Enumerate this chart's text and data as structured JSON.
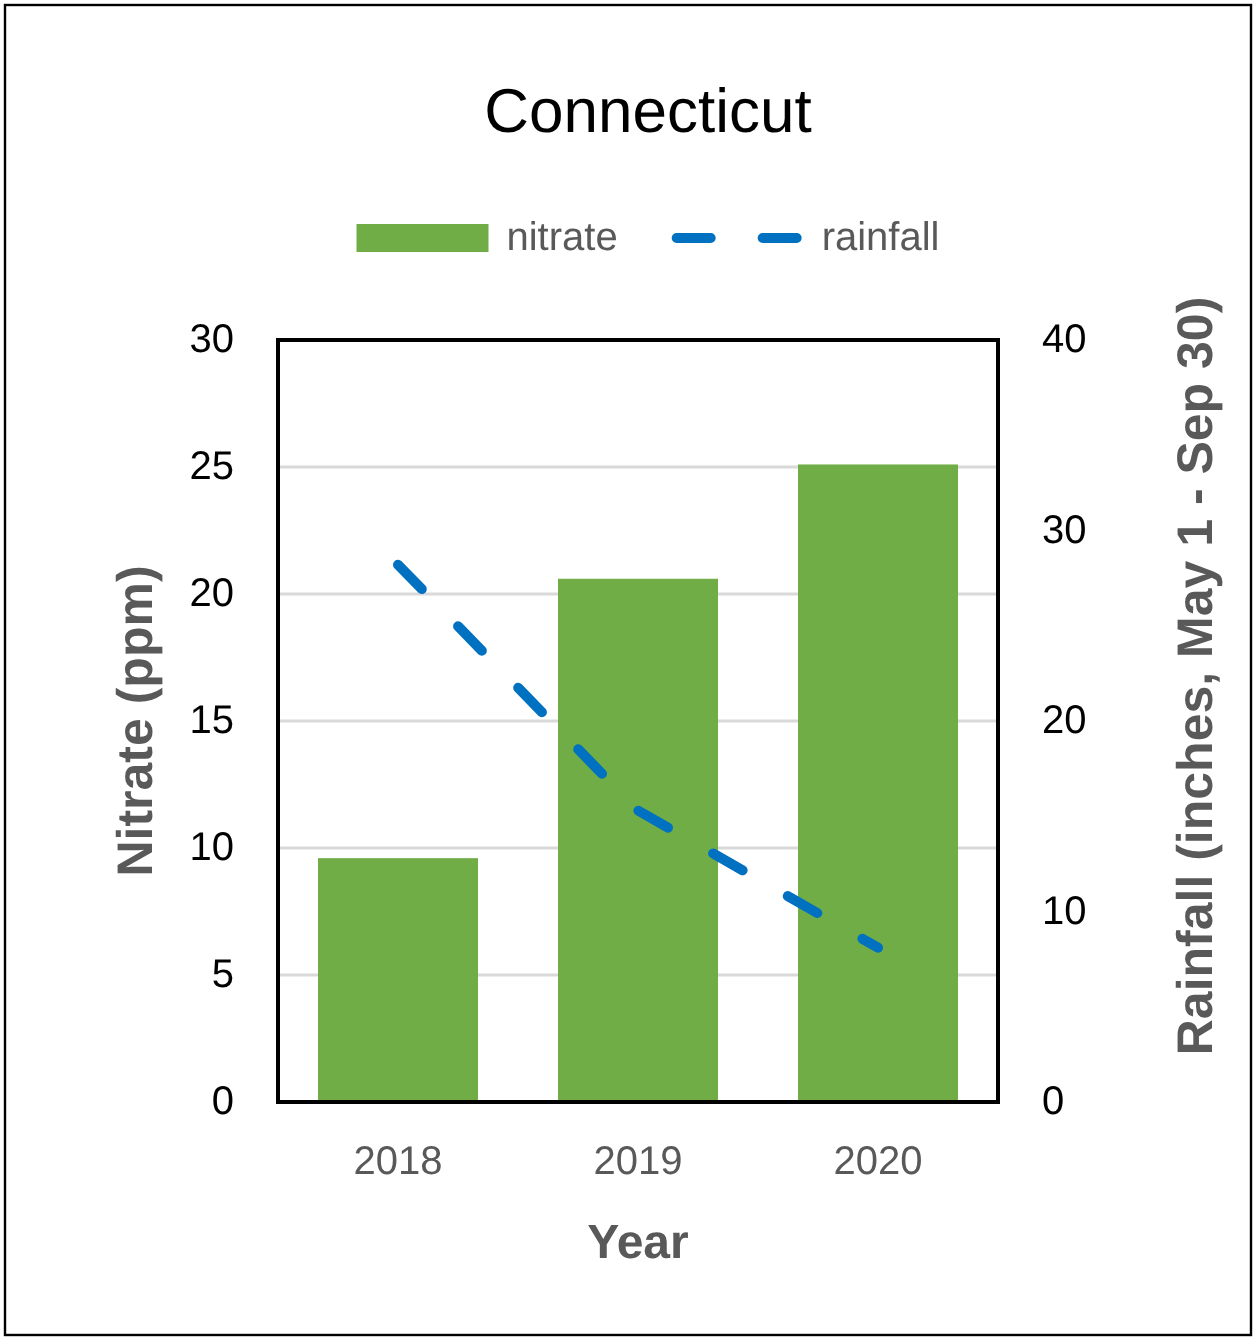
{
  "chart_data": {
    "type": "bar",
    "title": "Connecticut",
    "xlabel": "Year",
    "ylabel": "Nitrate (ppm)",
    "y2label": "Rainfall (inches, May 1 - Sep 30)",
    "categories": [
      "2018",
      "2019",
      "2020"
    ],
    "series": [
      {
        "name": "nitrate",
        "color": "#70ad47",
        "values": [
          9.6,
          20.6,
          25.1
        ]
      },
      {
        "name": "rainfall",
        "type": "line",
        "axis": "y2",
        "color": "#0070c0",
        "line_style": "dashed",
        "values": [
          28.2,
          15.3,
          8.1
        ]
      }
    ],
    "ylim": [
      0,
      30
    ],
    "yticks": [
      0,
      5,
      10,
      15,
      20,
      25,
      30
    ],
    "y2lim": [
      0,
      40
    ],
    "y2ticks": [
      0,
      10,
      20,
      30,
      40
    ],
    "grid": "y",
    "legend": "top"
  }
}
